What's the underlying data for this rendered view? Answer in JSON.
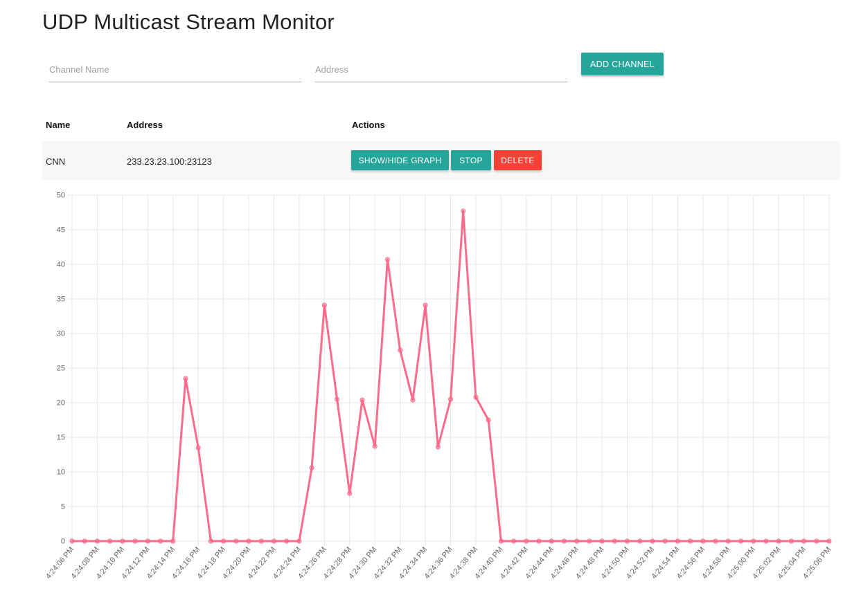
{
  "header": {
    "title": "UDP Multicast Stream Monitor"
  },
  "form": {
    "channel_name_placeholder": "Channel Name",
    "address_placeholder": "Address",
    "add_label": "ADD CHANNEL"
  },
  "table": {
    "headers": {
      "name": "Name",
      "address": "Address",
      "actions": "Actions"
    },
    "rows": [
      {
        "name": "CNN",
        "address": "233.23.23.100:23123",
        "show_hide_label": "SHOW/HIDE GRAPH",
        "stop_label": "STOP",
        "delete_label": "DELETE"
      }
    ]
  },
  "colors": {
    "accent": "#26a69a",
    "danger": "#f44336",
    "series": "#ff6384"
  },
  "chart_data": {
    "type": "line",
    "x": [
      "4:24:06 PM",
      "4:24:07 PM",
      "4:24:08 PM",
      "4:24:09 PM",
      "4:24:10 PM",
      "4:24:11 PM",
      "4:24:12 PM",
      "4:24:13 PM",
      "4:24:14 PM",
      "4:24:15 PM",
      "4:24:16 PM",
      "4:24:17 PM",
      "4:24:18 PM",
      "4:24:19 PM",
      "4:24:20 PM",
      "4:24:21 PM",
      "4:24:22 PM",
      "4:24:23 PM",
      "4:24:24 PM",
      "4:24:25 PM",
      "4:24:26 PM",
      "4:24:27 PM",
      "4:24:28 PM",
      "4:24:29 PM",
      "4:24:30 PM",
      "4:24:31 PM",
      "4:24:32 PM",
      "4:24:33 PM",
      "4:24:34 PM",
      "4:24:35 PM",
      "4:24:36 PM",
      "4:24:37 PM",
      "4:24:38 PM",
      "4:24:39 PM",
      "4:24:40 PM",
      "4:24:41 PM",
      "4:24:42 PM",
      "4:24:43 PM",
      "4:24:44 PM",
      "4:24:45 PM",
      "4:24:46 PM",
      "4:24:47 PM",
      "4:24:48 PM",
      "4:24:49 PM",
      "4:24:50 PM",
      "4:24:51 PM",
      "4:24:52 PM",
      "4:24:53 PM",
      "4:24:54 PM",
      "4:24:55 PM",
      "4:24:56 PM",
      "4:24:57 PM",
      "4:24:58 PM",
      "4:24:59 PM",
      "4:25:00 PM",
      "4:25:01 PM",
      "4:25:02 PM",
      "4:25:03 PM",
      "4:25:04 PM",
      "4:25:05 PM",
      "4:25:06 PM"
    ],
    "tick_labels": [
      "4:24:06 PM",
      "4:24:08 PM",
      "4:24:10 PM",
      "4:24:12 PM",
      "4:24:14 PM",
      "4:24:16 PM",
      "4:24:18 PM",
      "4:24:20 PM",
      "4:24:22 PM",
      "4:24:24 PM",
      "4:24:26 PM",
      "4:24:28 PM",
      "4:24:30 PM",
      "4:24:32 PM",
      "4:24:34 PM",
      "4:24:36 PM",
      "4:24:38 PM",
      "4:24:40 PM",
      "4:24:42 PM",
      "4:24:44 PM",
      "4:24:46 PM",
      "4:24:48 PM",
      "4:24:50 PM",
      "4:24:52 PM",
      "4:24:54 PM",
      "4:24:56 PM",
      "4:24:58 PM",
      "4:25:00 PM",
      "4:25:02 PM",
      "4:25:04 PM",
      "4:25:06 PM"
    ],
    "series": [
      {
        "values": [
          0,
          0,
          0,
          0,
          0,
          0,
          0,
          0,
          0,
          23.5,
          13.5,
          0,
          0,
          0,
          0,
          0,
          0,
          0,
          0,
          10.6,
          34.1,
          20.5,
          6.9,
          20.4,
          13.7,
          40.7,
          27.6,
          20.4,
          34.1,
          13.6,
          20.5,
          47.7,
          20.8,
          17.5,
          0,
          0,
          0,
          0,
          0,
          0,
          0,
          0,
          0,
          0,
          0,
          0,
          0,
          0,
          0,
          0,
          0,
          0,
          0,
          0,
          0,
          0,
          0,
          0,
          0,
          0,
          0
        ]
      }
    ],
    "yticks": [
      0,
      5,
      10,
      15,
      20,
      25,
      30,
      35,
      40,
      45,
      50
    ],
    "ylim": [
      0,
      50
    ],
    "grid": true,
    "legend": "none"
  }
}
